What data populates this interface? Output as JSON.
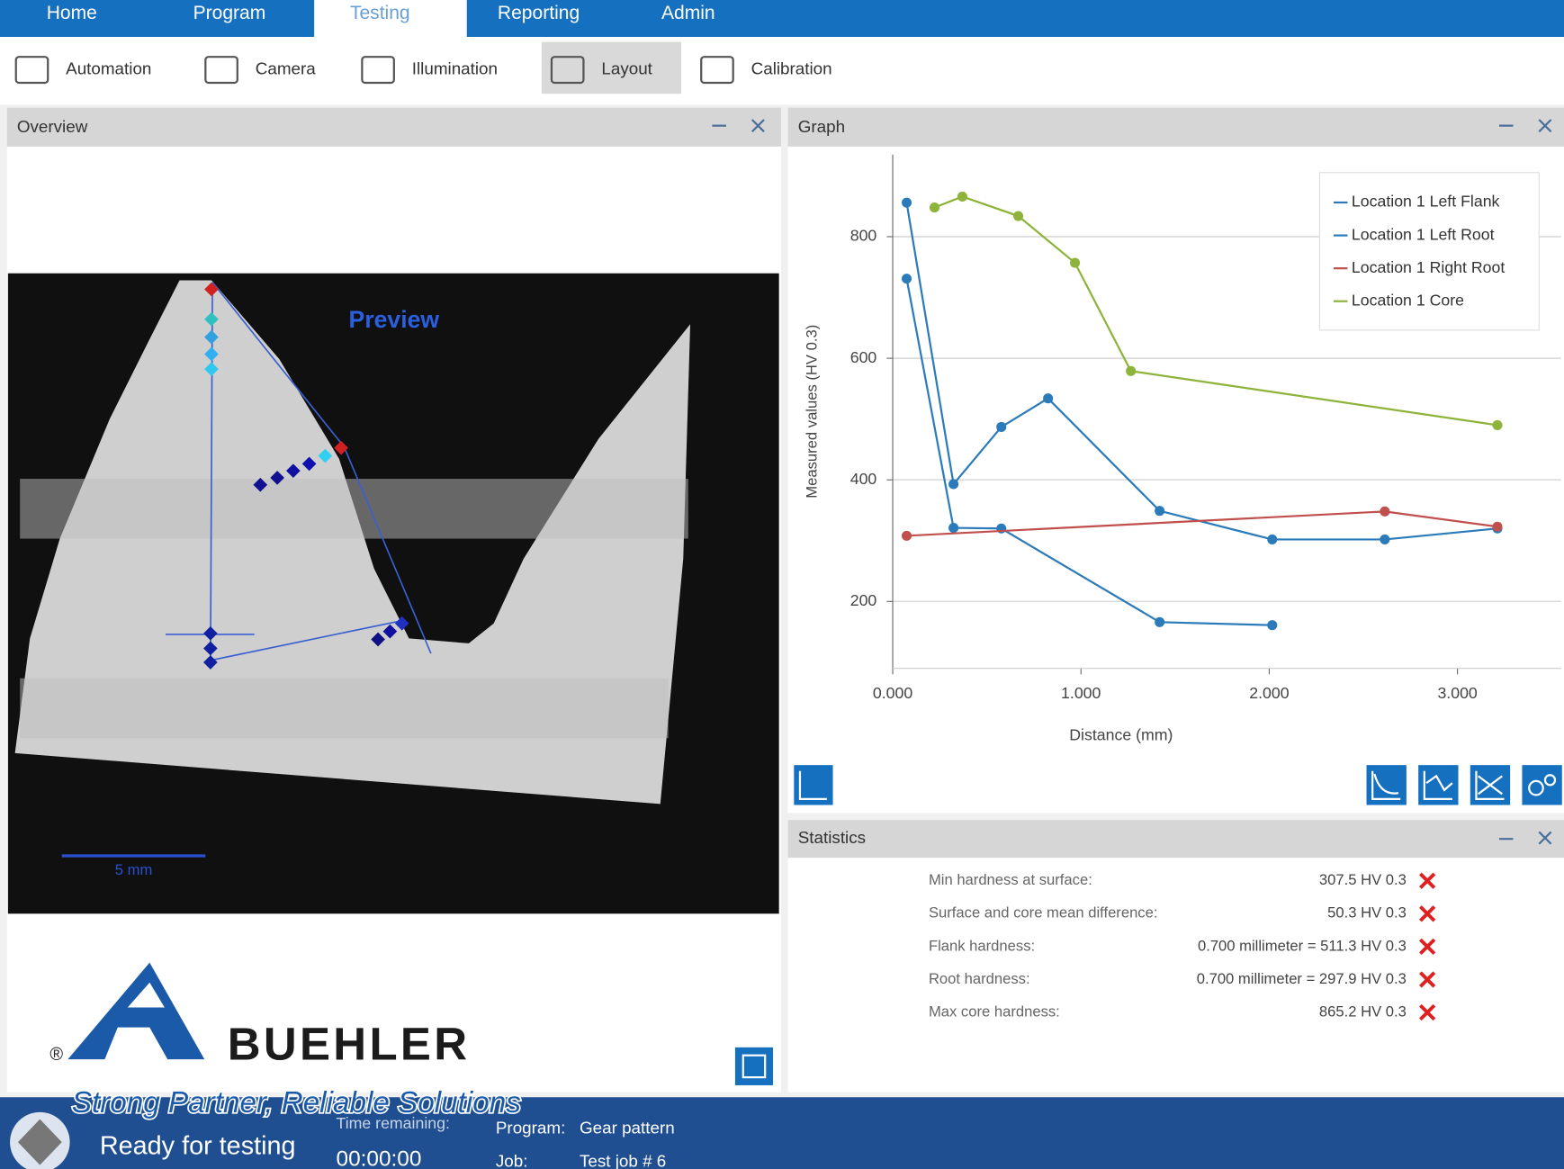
{
  "nav": {
    "tabs": [
      "Home",
      "Program",
      "Testing",
      "Reporting",
      "Admin"
    ]
  },
  "toolbar": [
    "Automation",
    "Camera",
    "Illumination",
    "Layout",
    "Calibration"
  ],
  "overview": {
    "title": "Overview",
    "preview_label": "Preview",
    "scale_label": "5 mm"
  },
  "graph": {
    "title": "Graph"
  },
  "chart_data": {
    "type": "line",
    "xlabel": "Distance (mm)",
    "ylabel": "Measured values (HV 0.3)",
    "xlim": [
      0,
      3.55
    ],
    "ylim": [
      90,
      935
    ],
    "xticks": [
      {
        "value": 0,
        "label": "0.000"
      },
      {
        "value": 1,
        "label": "1.000"
      },
      {
        "value": 2,
        "label": "2.000"
      },
      {
        "value": 3,
        "label": "3.000"
      }
    ],
    "yticks": [
      200,
      400,
      600,
      800
    ],
    "grid": true,
    "legend": "top-right",
    "series": [
      {
        "name": "Location 1 Left Flank",
        "color": "#2b7bbb",
        "x": [
          0.074,
          0.323,
          0.577,
          0.825,
          1.418,
          2.016,
          2.614,
          3.212
        ],
        "values": [
          856,
          393,
          487,
          534,
          349,
          302,
          302,
          320
        ]
      },
      {
        "name": "Location 1 Left Root",
        "color": "#2b7bbb",
        "x": [
          0.074,
          0.323,
          0.577,
          1.418,
          2.016
        ],
        "values": [
          731,
          321,
          320,
          166,
          161
        ]
      },
      {
        "name": "Location 1 Right Root",
        "color": "#c0504d",
        "x": [
          0.074,
          2.614,
          3.212
        ],
        "values": [
          308,
          348,
          323
        ]
      },
      {
        "name": "Location 1 Core",
        "color": "#8db33a",
        "x": [
          0.222,
          0.37,
          0.667,
          0.968,
          1.265,
          3.212
        ],
        "values": [
          848,
          866,
          834,
          757,
          579,
          490
        ]
      }
    ]
  },
  "statistics": {
    "title": "Statistics",
    "rows": [
      {
        "label": "Min hardness at surface:",
        "value": "307.5 HV 0.3"
      },
      {
        "label": "Surface and core mean difference:",
        "value": "50.3 HV 0.3"
      },
      {
        "label": "Flank hardness:",
        "value": "0.700 millimeter = 511.3 HV 0.3"
      },
      {
        "label": "Root hardness:",
        "value": "0.700 millimeter = 297.9 HV 0.3"
      },
      {
        "label": "Max core hardness:",
        "value": "865.2 HV 0.3"
      }
    ]
  },
  "status": {
    "state": "Ready for testing",
    "time_label": "Time remaining:",
    "time": "00:00:00",
    "program_label": "Program:",
    "program": "Gear pattern",
    "job_label": "Job:",
    "job": "Test job # 6"
  },
  "logo": {
    "brand": "BUEHLER",
    "registered": "®",
    "tagline": "Strong Partner, Reliable Solutions"
  }
}
